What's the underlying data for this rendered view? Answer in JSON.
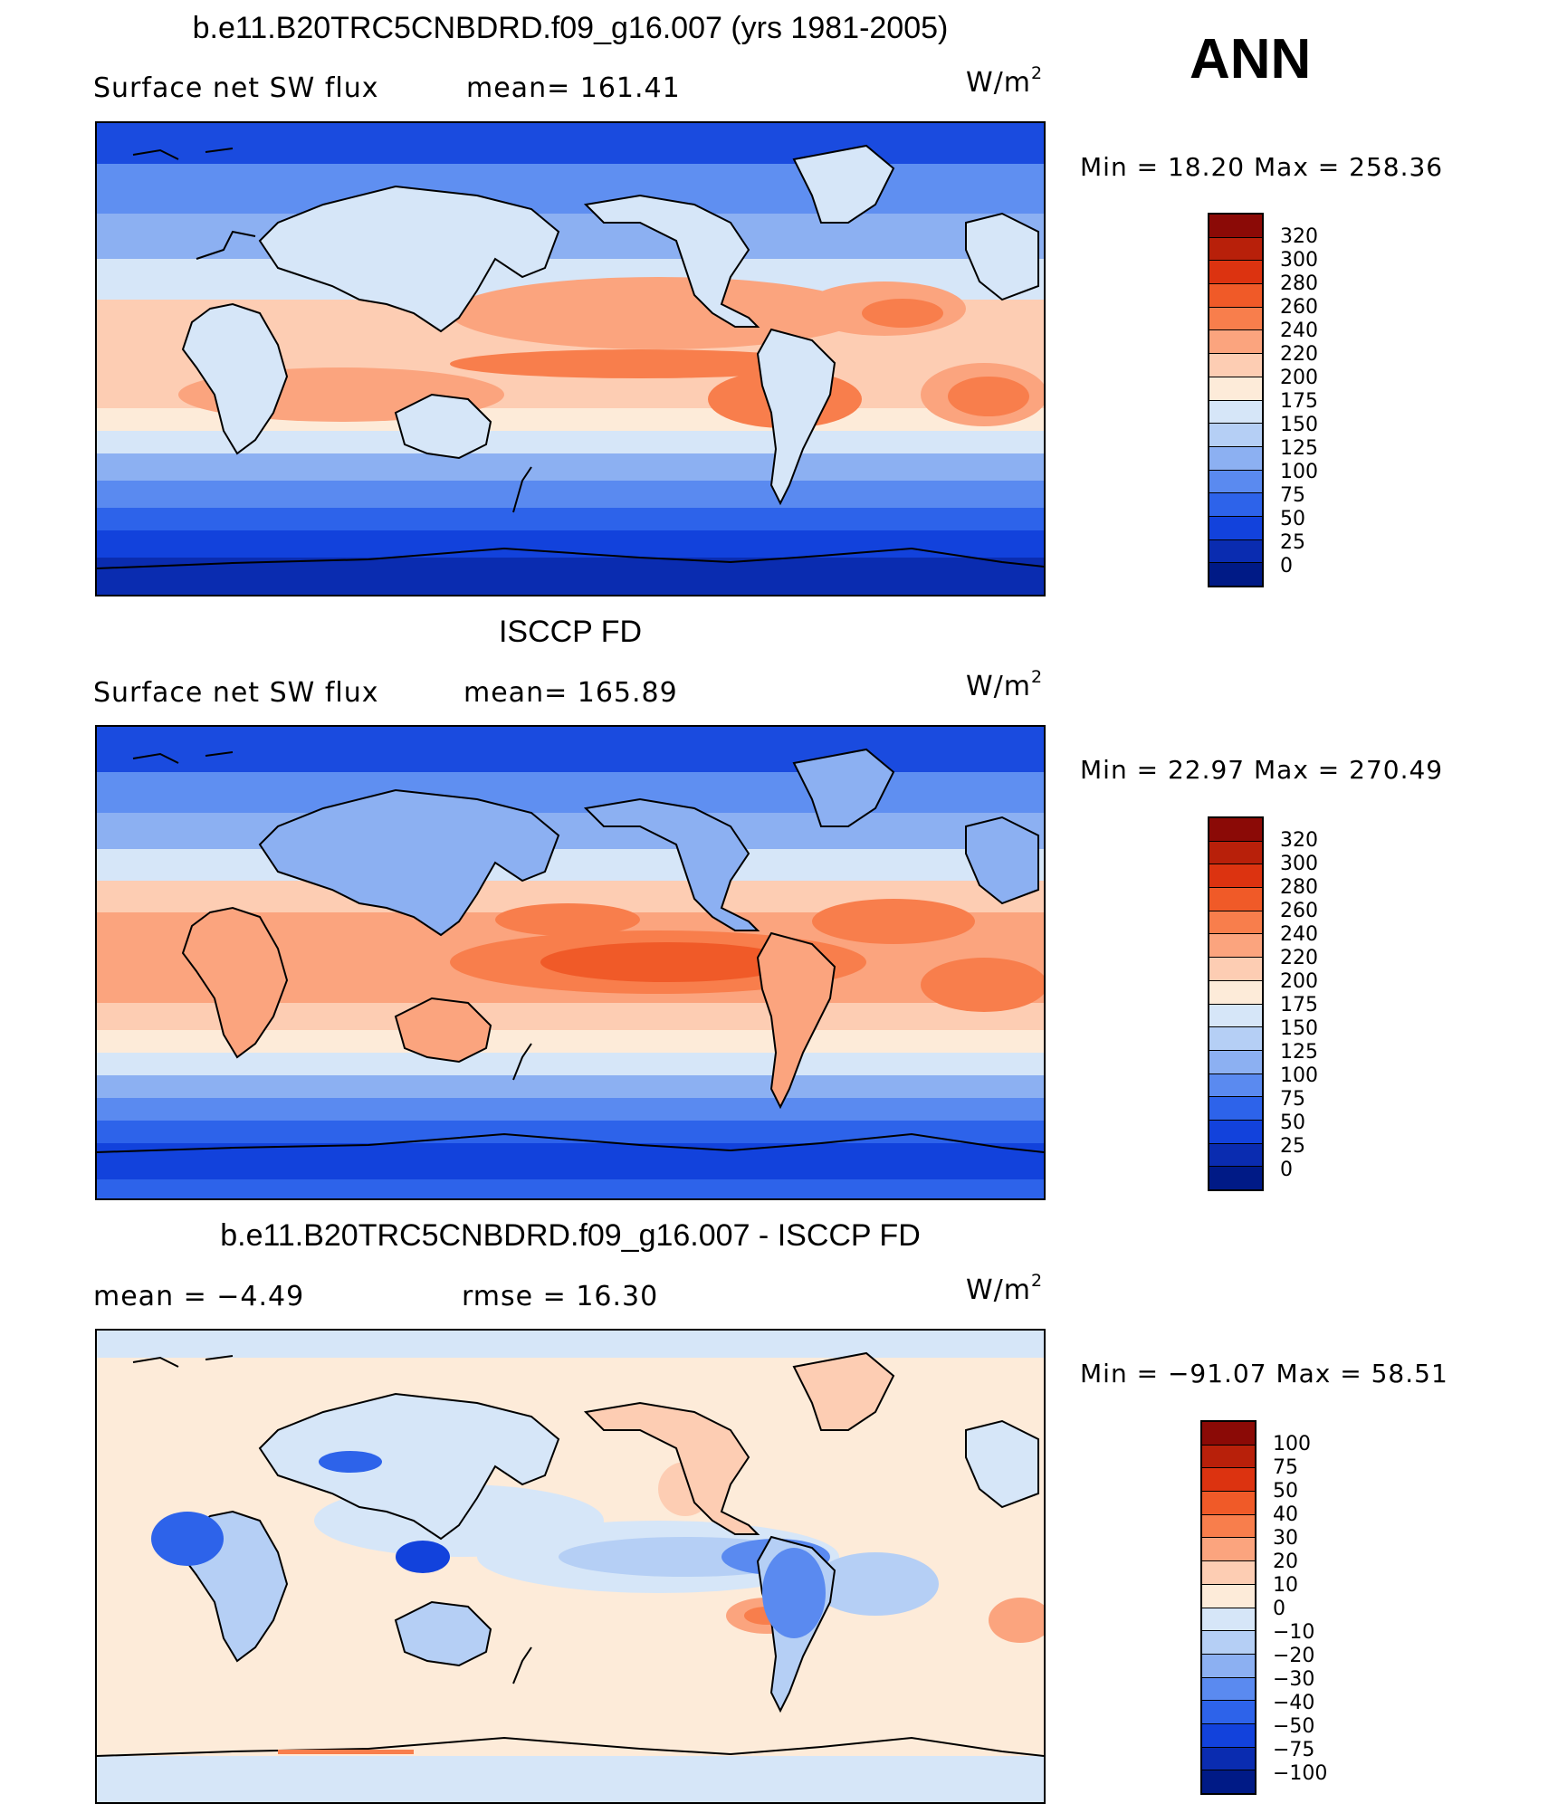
{
  "ann_label": "ANN",
  "panels": [
    {
      "title": "b.e11.B20TRC5CNBDRD.f09_g16.007 (yrs 1981-2005)",
      "left_text": "Surface  net  SW  flux",
      "right_text": "mean=  161.41",
      "units": "W/m",
      "units_sup": "2",
      "minmax": "Min  =    18.20  Max  =  258.36",
      "scale": "abs",
      "colorbar_labels": [
        "320",
        "300",
        "280",
        "260",
        "240",
        "220",
        "200",
        "175",
        "150",
        "125",
        "100",
        "75",
        "50",
        "25",
        "0"
      ]
    },
    {
      "title": "ISCCP FD",
      "left_text": "Surface  net  SW  flux",
      "right_text": "mean=  165.89",
      "units": "W/m",
      "units_sup": "2",
      "minmax": "Min  =    22.97  Max  =  270.49",
      "scale": "abs",
      "colorbar_labels": [
        "320",
        "300",
        "280",
        "260",
        "240",
        "220",
        "200",
        "175",
        "150",
        "125",
        "100",
        "75",
        "50",
        "25",
        "0"
      ]
    },
    {
      "title": "b.e11.B20TRC5CNBDRD.f09_g16.007 - ISCCP FD",
      "left_text": "mean  =    −4.49",
      "right_text": "rmse  =    16.30",
      "units": "W/m",
      "units_sup": "2",
      "minmax": "Min  =  −91.07  Max  =    58.51",
      "scale": "diff",
      "colorbar_labels": [
        "100",
        "75",
        "50",
        "40",
        "30",
        "20",
        "10",
        "0",
        "−10",
        "−20",
        "−30",
        "−40",
        "−50",
        "−75",
        "−100"
      ]
    }
  ],
  "colors": {
    "abs_scale": [
      "#8b0a06",
      "#b8200a",
      "#dc3310",
      "#f05a28",
      "#f87e4c",
      "#fba47e",
      "#fdcdb3",
      "#fdebd9",
      "#d6e6f8",
      "#b5cff5",
      "#8cb0f2",
      "#5a8af0",
      "#2d63ea",
      "#1242dc",
      "#0a2cb0",
      "#001a86"
    ],
    "diff_scale": [
      "#8b0a06",
      "#b8200a",
      "#dc3310",
      "#f05a28",
      "#f87e4c",
      "#fba47e",
      "#fdcdb3",
      "#fdebd9",
      "#d6e6f8",
      "#b5cff5",
      "#8cb0f2",
      "#5a8af0",
      "#2d63ea",
      "#1242dc",
      "#0a2cb0",
      "#001a86"
    ]
  }
}
